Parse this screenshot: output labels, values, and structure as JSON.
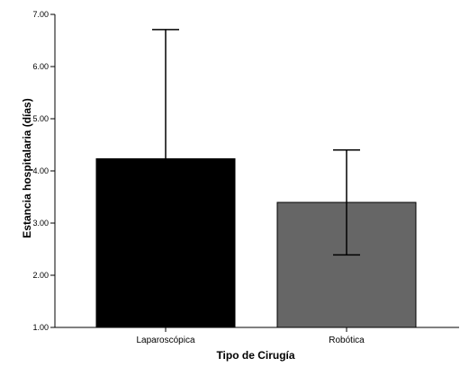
{
  "chart_data": {
    "type": "bar",
    "categories": [
      "Laparoscópica",
      "Robótica"
    ],
    "values": [
      4.23,
      3.4
    ],
    "error_bars": [
      {
        "low": 1.75,
        "high": 6.71
      },
      {
        "low": 2.39,
        "high": 4.4
      }
    ],
    "xlabel": "Tipo de Cirugía",
    "ylabel": "Estancia hospitalaria (días)",
    "ylim": [
      1.0,
      7.0
    ],
    "yticks": [
      1.0,
      2.0,
      3.0,
      4.0,
      5.0,
      6.0,
      7.0
    ],
    "ytick_labels": [
      "1.00",
      "2.00",
      "3.00",
      "4.00",
      "5.00",
      "6.00",
      "7.00"
    ],
    "bar_colors": [
      "#000000",
      "#666666"
    ],
    "grid": false,
    "legend": "none"
  }
}
